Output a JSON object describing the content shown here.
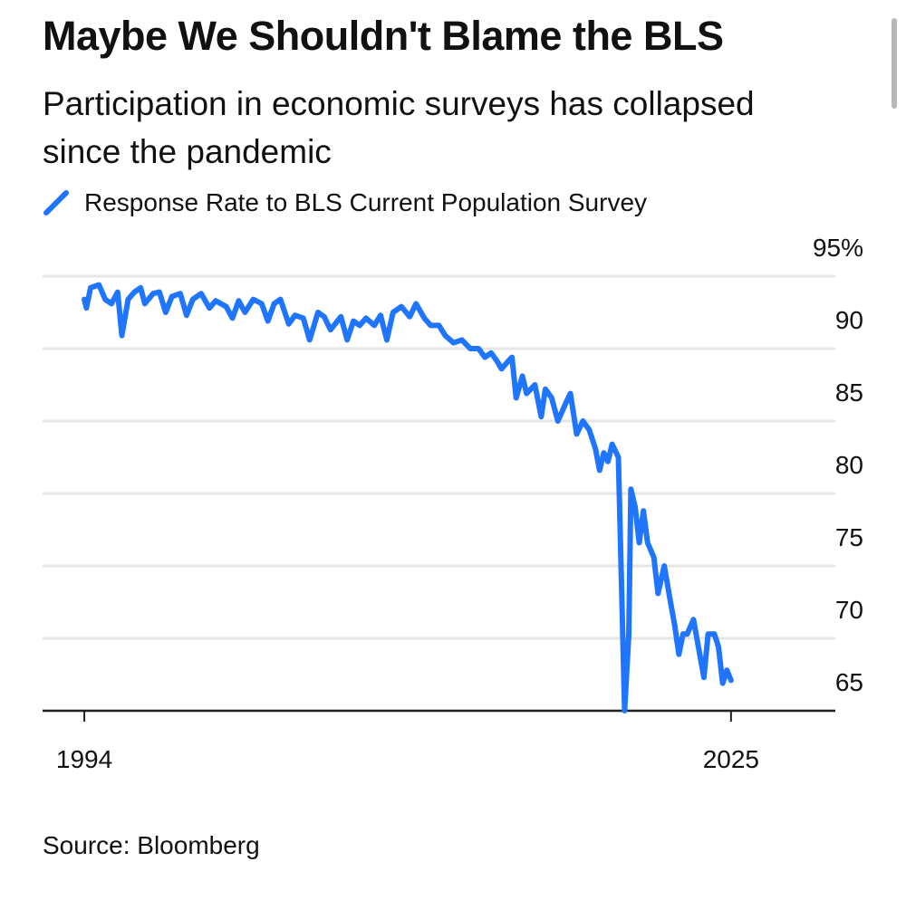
{
  "chart_data": {
    "type": "line",
    "title": "Maybe We Shouldn't Blame the BLS",
    "subtitle": "Participation in economic surveys has collapsed since the pandemic",
    "source": "Source: Bloomberg",
    "xlim": [
      1992,
      2030
    ],
    "xticks": [
      1994,
      2025
    ],
    "ylim": [
      65,
      95
    ],
    "yticks": [
      65,
      70,
      75,
      80,
      85,
      90,
      {
        "value": 95,
        "label": "95%"
      }
    ],
    "grid": true,
    "x": [
      1994.0,
      1994.1,
      1994.3,
      1994.7,
      1995.0,
      1995.3,
      1995.6,
      1995.8,
      1996.1,
      1996.4,
      1996.7,
      1996.9,
      1997.3,
      1997.6,
      1997.9,
      1998.2,
      1998.6,
      1998.9,
      1999.2,
      1999.6,
      2000.0,
      2000.3,
      2000.8,
      2001.1,
      2001.4,
      2001.7,
      2002.1,
      2002.5,
      2002.8,
      2003.1,
      2003.4,
      2003.8,
      2004.1,
      2004.5,
      2004.8,
      2005.2,
      2005.5,
      2005.8,
      2006.3,
      2006.6,
      2006.9,
      2007.2,
      2007.5,
      2007.9,
      2008.2,
      2008.5,
      2008.8,
      2009.2,
      2009.6,
      2009.9,
      2010.3,
      2010.6,
      2011.0,
      2011.3,
      2011.7,
      2012.1,
      2012.5,
      2012.9,
      2013.2,
      2013.5,
      2013.8,
      2014.0,
      2014.3,
      2014.5,
      2014.7,
      2015.0,
      2015.2,
      2015.6,
      2015.9,
      2016.1,
      2016.4,
      2016.7,
      2017.1,
      2017.3,
      2017.6,
      2017.9,
      2018.2,
      2018.5,
      2018.7,
      2018.9,
      2019.1,
      2019.3,
      2019.6,
      2019.9,
      2020.1,
      2020.2,
      2020.4,
      2020.6,
      2020.8,
      2021.0,
      2021.3,
      2021.5,
      2021.8,
      2022.1,
      2022.3,
      2022.5,
      2022.7,
      2022.9,
      2023.2,
      2023.4,
      2023.7,
      2023.9,
      2024.2,
      2024.4,
      2024.6,
      2024.8,
      2025.0
    ],
    "series": [
      {
        "name": "Response Rate to BLS Current Population Survey",
        "color": "#1f75fe",
        "values": [
          93.4,
          92.8,
          94.2,
          94.4,
          93.4,
          93.1,
          93.9,
          90.9,
          93.4,
          93.9,
          94.2,
          93.1,
          93.8,
          93.9,
          92.5,
          93.6,
          93.8,
          92.3,
          93.4,
          93.8,
          92.8,
          93.3,
          92.9,
          92.1,
          93.3,
          92.5,
          93.4,
          93.1,
          91.9,
          93.1,
          93.4,
          91.7,
          92.3,
          92.1,
          90.6,
          92.5,
          92.2,
          91.3,
          92.2,
          90.6,
          91.9,
          91.6,
          92.1,
          91.6,
          92.3,
          90.6,
          92.5,
          92.9,
          92.2,
          93.1,
          92.1,
          91.6,
          91.6,
          90.9,
          90.4,
          90.6,
          90.0,
          90.0,
          89.4,
          89.7,
          89.1,
          88.6,
          89.1,
          89.4,
          86.6,
          88.1,
          86.9,
          87.5,
          85.3,
          87.2,
          86.6,
          85.0,
          86.3,
          86.9,
          84.1,
          85.0,
          84.4,
          83.1,
          81.6,
          82.8,
          82.2,
          83.4,
          82.5,
          65.0,
          70.3,
          80.3,
          79.1,
          76.6,
          78.8,
          76.6,
          75.6,
          73.1,
          75.0,
          72.5,
          70.9,
          68.9,
          70.3,
          70.3,
          71.3,
          69.7,
          67.3,
          70.3,
          70.3,
          69.4,
          66.9,
          67.8,
          67.1
        ]
      }
    ]
  }
}
